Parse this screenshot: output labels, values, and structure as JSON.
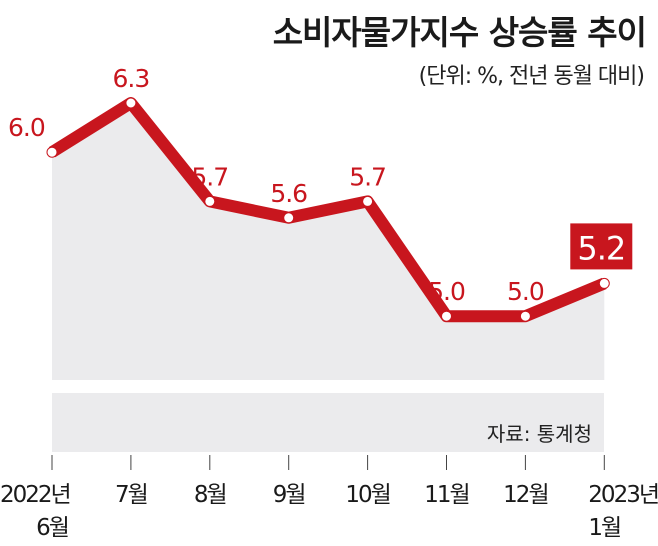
{
  "chart_data": {
    "type": "line",
    "title": "소비자물가지수 상승률 추이",
    "subtitle": "(단위: %, 전년 동월 대비)",
    "source": "자료: 통계청",
    "categories": [
      [
        "2022년",
        "6월"
      ],
      [
        "7월"
      ],
      [
        "8월"
      ],
      [
        "9월"
      ],
      [
        "10월"
      ],
      [
        "11월"
      ],
      [
        "12월"
      ],
      [
        "2023년",
        "1월"
      ]
    ],
    "values": [
      6.0,
      6.3,
      5.7,
      5.6,
      5.7,
      5.0,
      5.0,
      5.2
    ],
    "labels": [
      "6.0",
      "6.3",
      "5.7",
      "5.6",
      "5.7",
      "5.0",
      "5.0",
      "5.2"
    ],
    "highlight_index": 7,
    "colors": {
      "line": "#c8161e",
      "area": "#ebebed",
      "highlight_bg": "#c8161e"
    }
  }
}
